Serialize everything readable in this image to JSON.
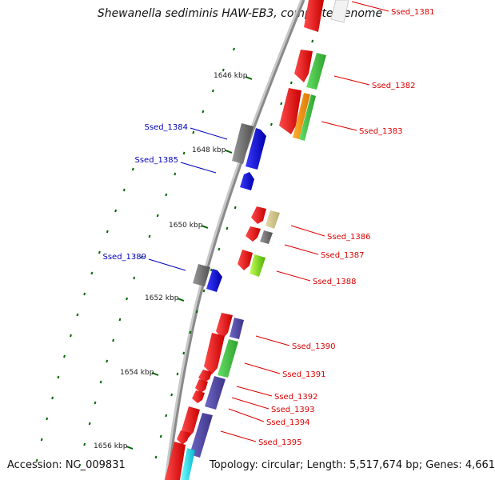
{
  "title": "Shewanella sediminis HAW-EB3, complete genome",
  "footer": {
    "accession": "Accession: NC_009831",
    "summary": "Topology: circular; Length: 5,517,674 bp; Genes: 4,661"
  },
  "ticks": [
    {
      "label": "1646 kbp"
    },
    {
      "label": "1648 kbp"
    },
    {
      "label": "1650 kbp"
    },
    {
      "label": "1652 kbp"
    },
    {
      "label": "1654 kbp"
    },
    {
      "label": "1656 kbp"
    }
  ],
  "labels_left": [
    {
      "text": "Ssed_1384"
    },
    {
      "text": "Ssed_1385"
    },
    {
      "text": "Ssed_1389"
    }
  ],
  "labels_right": [
    {
      "text": "Ssed_1381"
    },
    {
      "text": "Ssed_1382"
    },
    {
      "text": "Ssed_1383"
    },
    {
      "text": "Ssed_1386"
    },
    {
      "text": "Ssed_1387"
    },
    {
      "text": "Ssed_1388"
    },
    {
      "text": "Ssed_1390"
    },
    {
      "text": "Ssed_1391"
    },
    {
      "text": "Ssed_1392"
    },
    {
      "text": "Ssed_1393"
    },
    {
      "text": "Ssed_1394"
    },
    {
      "text": "Ssed_1395"
    }
  ],
  "colors": {
    "backbone": "#8a8a8a",
    "forward_strand": "#ee0000",
    "reverse_strand": "#0000ee",
    "tick": "#006600",
    "label_right": "#dd0000",
    "label_left": "#0000bb"
  }
}
